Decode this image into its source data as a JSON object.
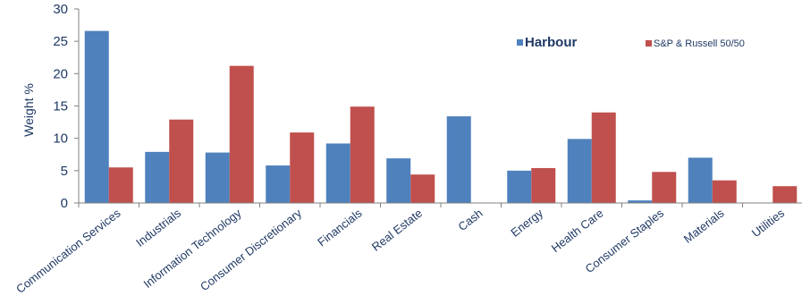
{
  "chart_data": {
    "type": "bar",
    "categories": [
      "Communication Services",
      "Industrials",
      "Information Technology",
      "Consumer Discretionary",
      "Financials",
      "Real Estate",
      "Cash",
      "Energy",
      "Health Care",
      "Consumer Staples",
      "Materials",
      "Utilities"
    ],
    "series": [
      {
        "name": "Harbour",
        "color": "#4f81bd",
        "values": [
          26.6,
          7.9,
          7.8,
          5.8,
          9.2,
          6.9,
          13.4,
          5.0,
          9.9,
          0.4,
          7.0,
          0
        ]
      },
      {
        "name": "S&P & Russell 50/50",
        "color": "#c0504d",
        "values": [
          5.5,
          12.9,
          21.2,
          10.9,
          14.9,
          4.4,
          0,
          5.4,
          14.0,
          4.8,
          3.5,
          2.6
        ]
      }
    ],
    "title": "",
    "xlabel": "",
    "ylabel": "Weight %",
    "ylim": [
      0,
      30
    ],
    "yticks": [
      "0",
      "5",
      "10",
      "15",
      "20",
      "25",
      "30"
    ],
    "grid": false,
    "legend_position": "top-right"
  }
}
